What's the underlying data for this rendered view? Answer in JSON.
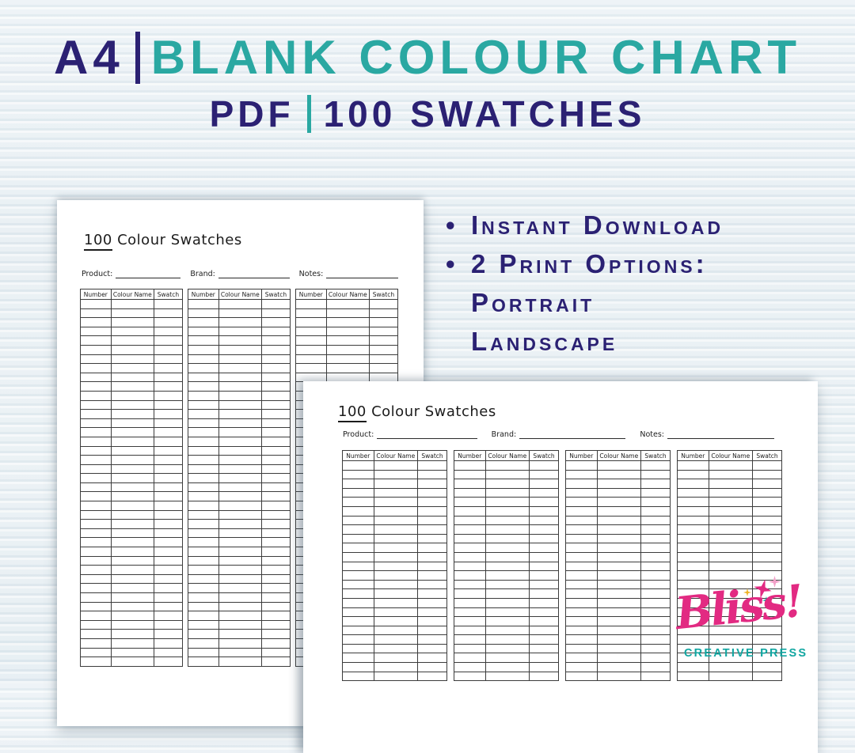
{
  "poster": {
    "title_line1": {
      "left": "A4",
      "right": "BLANK COLOUR CHART"
    },
    "title_line2": {
      "left": "PDF",
      "right": "100 SWATCHES"
    },
    "features": [
      {
        "bullet": "•",
        "text": "Instant Download"
      },
      {
        "bullet": "•",
        "text": "2 Print Options:"
      },
      {
        "bullet": "",
        "text": "Portrait"
      },
      {
        "bullet": "",
        "text": "Landscape"
      }
    ]
  },
  "sheet": {
    "title_number": "100",
    "title_rest": "Colour Swatches",
    "field_labels": [
      "Product:",
      "Brand:",
      "Notes:"
    ],
    "columns": [
      "Number",
      "Colour Name",
      "Swatch"
    ],
    "portrait_layout": {
      "tables": 3,
      "rows": 40
    },
    "landscape_layout": {
      "tables": 4,
      "rows": 24
    }
  },
  "logo": {
    "name": "Bliss!",
    "subtitle": "CREATIVE PRESS"
  },
  "colors": {
    "navy": "#2b2173",
    "teal": "#2aa8a2",
    "logo_pink": "#e22a82",
    "sparkle_light_pink": "#f2a0c8",
    "sparkle_teal": "#0ea39c",
    "sparkle_gold": "#f0b429",
    "background": "#e8eef2",
    "page": "#ffffff",
    "grid_line": "#3c3c3c"
  }
}
